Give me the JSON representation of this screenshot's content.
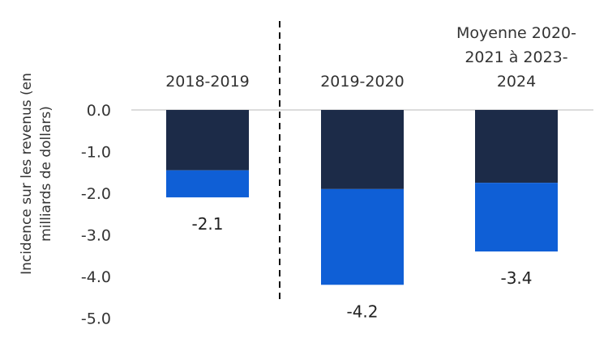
{
  "chart_data": {
    "type": "bar",
    "stacked": true,
    "categories": [
      [
        "2018-2019"
      ],
      [
        "2019-2020"
      ],
      [
        "Moyenne 2020-",
        "2021 à 2023-",
        "2024"
      ]
    ],
    "series": [
      {
        "values": [
          -1.45,
          -1.9,
          -1.75
        ],
        "color": "#1c2b48"
      },
      {
        "values": [
          -0.65,
          -2.3,
          -1.65
        ],
        "color": "#0f5fd6"
      }
    ],
    "totals": [
      -2.1,
      -4.2,
      -3.4
    ],
    "total_labels": [
      "-2.1",
      "-4.2",
      "-3.4"
    ],
    "ylabel": [
      "Incidence sur les revenus (en",
      "milliards de dollars)"
    ],
    "yticks": [
      "0.0",
      "-1.0",
      "-2.0",
      "-3.0",
      "-4.0",
      "-5.0"
    ],
    "ylim": [
      -5,
      0
    ],
    "grid": false,
    "zero_line": true,
    "separator": {
      "after_category": 0,
      "style": "dashed"
    }
  }
}
